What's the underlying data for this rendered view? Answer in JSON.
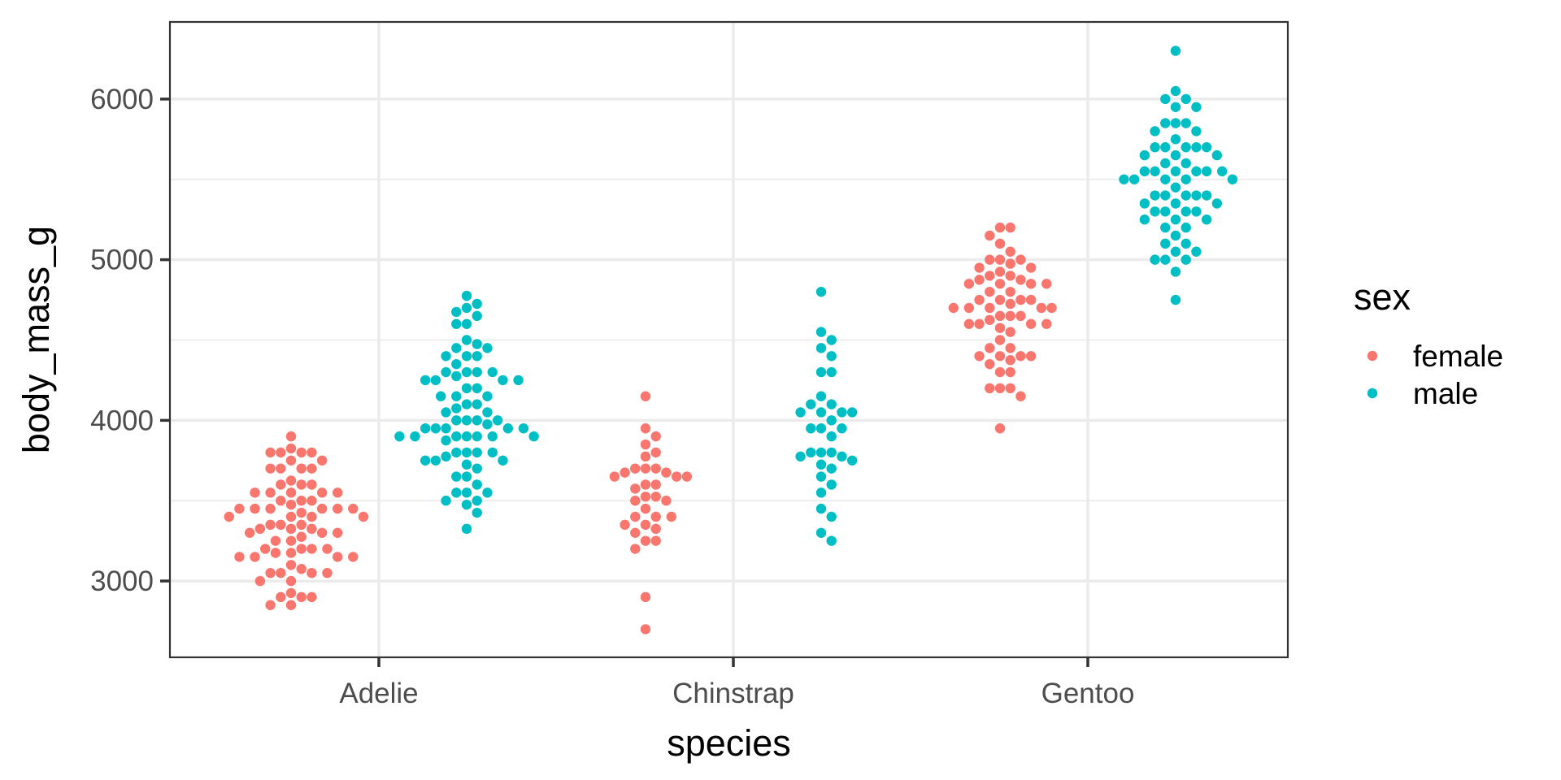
{
  "chart_data": {
    "type": "scatter",
    "subtype": "beeswarm",
    "title": "",
    "xlabel": "species",
    "ylabel": "body_mass_g",
    "categories": [
      "Adelie",
      "Chinstrap",
      "Gentoo"
    ],
    "y_ticks": [
      3000,
      4000,
      5000,
      6000
    ],
    "y_tick_labels": [
      "3000",
      "4000",
      "5000",
      "6000"
    ],
    "ylim": [
      2525,
      6480
    ],
    "grid": true,
    "legend": {
      "title": "sex",
      "placement": "right",
      "entries": [
        {
          "label": "female",
          "color": "#F8766D"
        },
        {
          "label": "male",
          "color": "#00BFC4"
        }
      ]
    },
    "series": [
      {
        "name": "female",
        "color": "#F8766D",
        "values": {
          "Adelie": [
            3900,
            3825,
            3800,
            3800,
            3800,
            3800,
            3750,
            3750,
            3700,
            3700,
            3700,
            3700,
            3625,
            3600,
            3600,
            3600,
            3550,
            3550,
            3550,
            3550,
            3550,
            3500,
            3500,
            3500,
            3475,
            3450,
            3450,
            3450,
            3450,
            3450,
            3450,
            3425,
            3400,
            3400,
            3400,
            3400,
            3350,
            3350,
            3350,
            3325,
            3325,
            3325,
            3300,
            3300,
            3300,
            3275,
            3250,
            3250,
            3200,
            3200,
            3200,
            3200,
            3175,
            3175,
            3150,
            3150,
            3150,
            3150,
            3100,
            3075,
            3050,
            3050,
            3050,
            3050,
            3000,
            3000,
            2925,
            2900,
            2900,
            2900,
            2850,
            2850
          ],
          "Chinstrap": [
            4150,
            3950,
            3900,
            3850,
            3800,
            3775,
            3700,
            3700,
            3700,
            3675,
            3675,
            3650,
            3650,
            3650,
            3600,
            3600,
            3575,
            3525,
            3525,
            3500,
            3500,
            3450,
            3400,
            3400,
            3400,
            3350,
            3350,
            3325,
            3300,
            3250,
            3250,
            3200,
            2900,
            2700
          ],
          "Gentoo": [
            5200,
            5200,
            5150,
            5100,
            5050,
            5000,
            5000,
            5000,
            4975,
            4950,
            4950,
            4925,
            4900,
            4900,
            4875,
            4875,
            4850,
            4850,
            4850,
            4850,
            4800,
            4800,
            4750,
            4750,
            4750,
            4750,
            4725,
            4700,
            4700,
            4700,
            4700,
            4700,
            4650,
            4650,
            4650,
            4625,
            4600,
            4600,
            4600,
            4600,
            4575,
            4550,
            4500,
            4450,
            4450,
            4400,
            4400,
            4400,
            4400,
            4375,
            4350,
            4300,
            4300,
            4200,
            4200,
            4200,
            4150,
            3950
          ]
        }
      },
      {
        "name": "male",
        "color": "#00BFC4",
        "values": {
          "Adelie": [
            4775,
            4725,
            4700,
            4675,
            4650,
            4600,
            4600,
            4500,
            4475,
            4450,
            4450,
            4400,
            4400,
            4400,
            4350,
            4300,
            4300,
            4300,
            4300,
            4275,
            4250,
            4250,
            4250,
            4250,
            4200,
            4200,
            4150,
            4150,
            4150,
            4100,
            4100,
            4075,
            4050,
            4050,
            4000,
            4000,
            4000,
            4000,
            3975,
            3950,
            3950,
            3950,
            3950,
            3950,
            3900,
            3900,
            3900,
            3900,
            3900,
            3900,
            3900,
            3875,
            3800,
            3800,
            3800,
            3800,
            3775,
            3750,
            3750,
            3750,
            3725,
            3700,
            3650,
            3650,
            3600,
            3550,
            3550,
            3550,
            3500,
            3500,
            3475,
            3425,
            3325
          ],
          "Chinstrap": [
            4800,
            4550,
            4500,
            4450,
            4400,
            4300,
            4300,
            4150,
            4100,
            4100,
            4050,
            4050,
            4050,
            4050,
            4000,
            3950,
            3950,
            3950,
            3900,
            3800,
            3800,
            3800,
            3775,
            3775,
            3750,
            3725,
            3700,
            3650,
            3600,
            3550,
            3450,
            3400,
            3300,
            3250
          ],
          "Gentoo": [
            6300,
            6050,
            6000,
            6000,
            5950,
            5950,
            5850,
            5850,
            5850,
            5800,
            5800,
            5750,
            5700,
            5700,
            5700,
            5700,
            5700,
            5650,
            5650,
            5650,
            5600,
            5600,
            5550,
            5550,
            5550,
            5550,
            5550,
            5550,
            5500,
            5500,
            5500,
            5500,
            5500,
            5450,
            5400,
            5400,
            5400,
            5400,
            5400,
            5350,
            5350,
            5350,
            5300,
            5300,
            5300,
            5300,
            5250,
            5250,
            5250,
            5200,
            5200,
            5150,
            5100,
            5100,
            5050,
            5050,
            5000,
            5000,
            5000,
            4925,
            4750
          ]
        }
      }
    ]
  }
}
